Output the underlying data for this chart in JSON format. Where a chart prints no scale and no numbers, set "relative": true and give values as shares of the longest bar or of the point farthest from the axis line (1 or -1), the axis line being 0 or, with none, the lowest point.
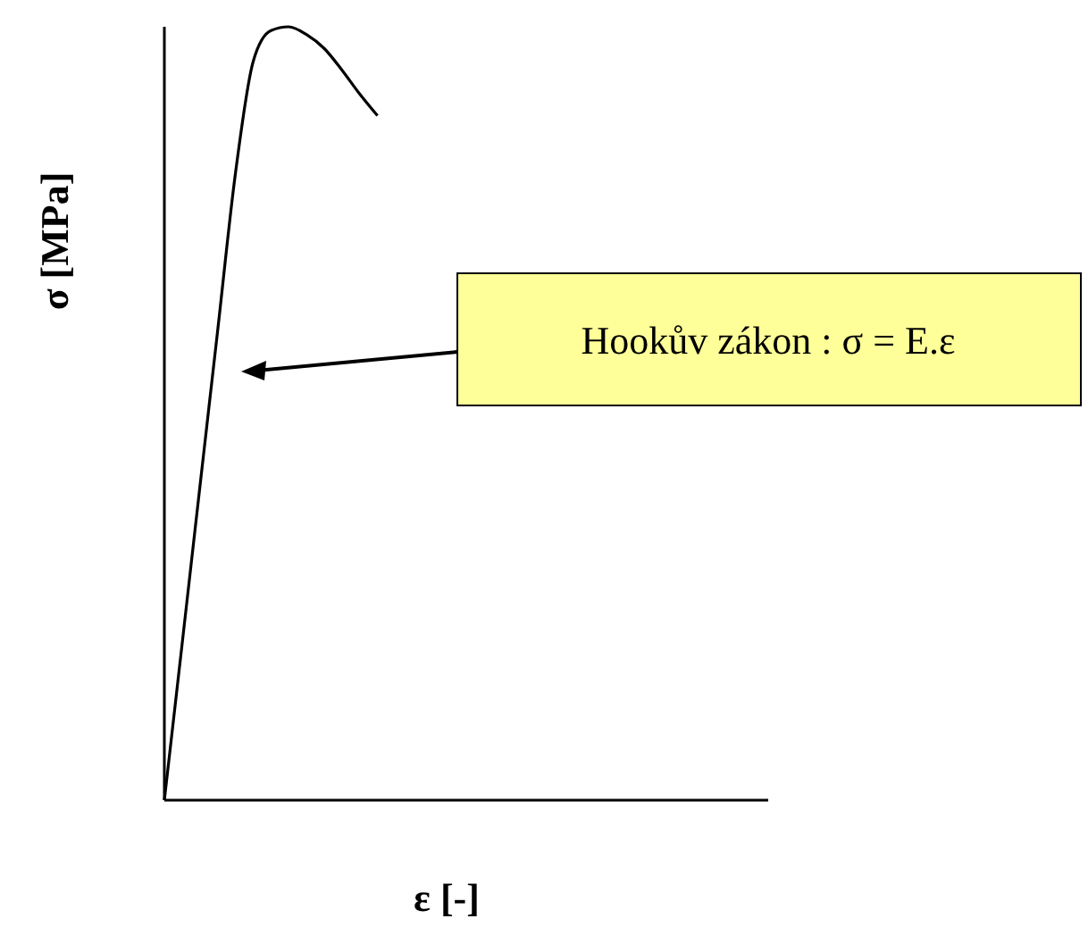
{
  "chart_data": {
    "type": "line",
    "relative": true,
    "xlabel": "ε [-]",
    "ylabel": "σ [MPa]",
    "categories": [
      null,
      null,
      null,
      null,
      null,
      null,
      null,
      null,
      null,
      null,
      null,
      null,
      null,
      null,
      null,
      null,
      null,
      null,
      null,
      null,
      null,
      null,
      null,
      null,
      null,
      null,
      null,
      null,
      null,
      null,
      null,
      null,
      null,
      null,
      null
    ],
    "series": [
      {
        "color": "#000000",
        "values": [
          0,
          0.202,
          0.405,
          0.607,
          0.81,
          0.955,
          0.995,
          1,
          0.99,
          0.972,
          0.944,
          0.913,
          0.885,
          null,
          null,
          null,
          null,
          null,
          null,
          null,
          null,
          null,
          null,
          null,
          null,
          null,
          null,
          null,
          null,
          null,
          null,
          null,
          null,
          null,
          null
        ]
      }
    ],
    "annotations": [
      "Hookův zákon : σ = E.ε"
    ]
  }
}
